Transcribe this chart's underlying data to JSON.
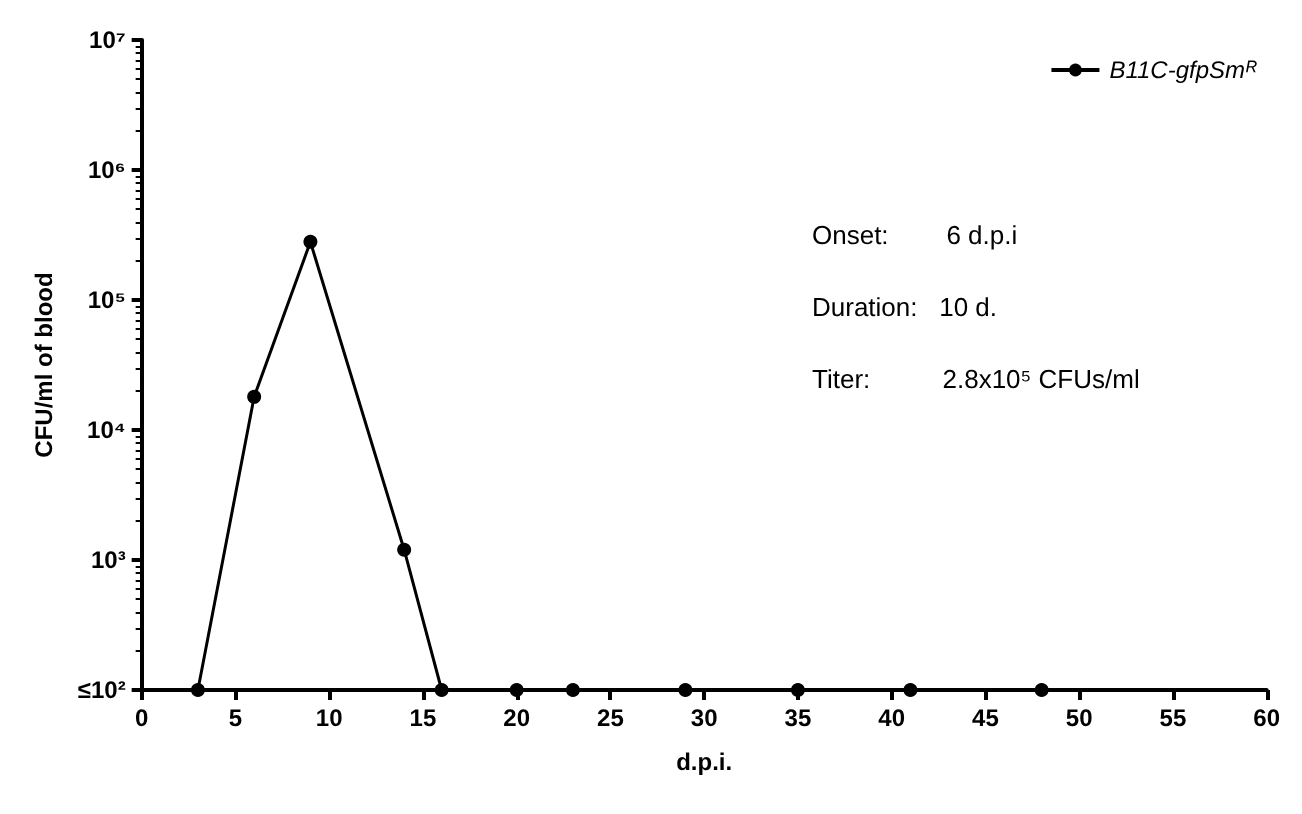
{
  "chart_data": {
    "type": "line",
    "xlabel": "d.p.i.",
    "ylabel": "CFU/ml of blood",
    "log": "y",
    "xlim": [
      0,
      60
    ],
    "xticks": [
      0,
      5,
      10,
      15,
      20,
      25,
      30,
      35,
      40,
      45,
      50,
      55,
      60
    ],
    "ylim": [
      100,
      10000000
    ],
    "yticks": [
      {
        "value": 100,
        "label": "≤10²"
      },
      {
        "value": 1000,
        "label": "10³"
      },
      {
        "value": 10000,
        "label": "10⁴"
      },
      {
        "value": 100000,
        "label": "10⁵"
      },
      {
        "value": 1000000,
        "label": "10⁶"
      },
      {
        "value": 10000000,
        "label": "10⁷"
      }
    ],
    "series": [
      {
        "name": "B11C-gfpSmᴿ",
        "color": "#000000",
        "x": [
          3,
          6,
          9,
          14,
          16,
          20,
          23,
          29,
          35,
          41,
          48
        ],
        "values": [
          100,
          18000,
          280000,
          1200,
          100,
          100,
          100,
          100,
          100,
          100,
          100
        ]
      }
    ],
    "marker": "circle",
    "line_style": "solid",
    "grid": false,
    "legend": "top right",
    "annotations": [
      "Onset:        6 d.p.i",
      "Duration:   10 d.",
      "Titer:          2.8x10⁵ CFUs/ml"
    ]
  }
}
